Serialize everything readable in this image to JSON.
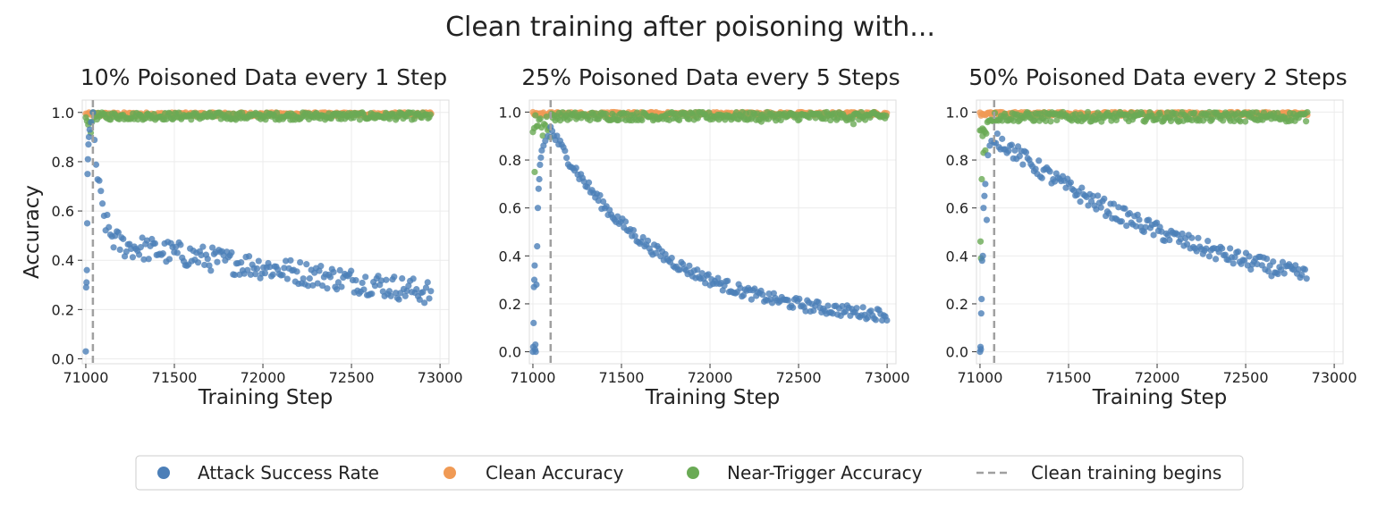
{
  "suptitle": "Clean training after poisoning with...",
  "colors": {
    "attack": "#4c7fb8",
    "clean": "#f09a55",
    "near": "#6aaa55",
    "dashed": "#a0a0a0",
    "grid": "#ececec",
    "axis": "#333333"
  },
  "legend": {
    "items": [
      {
        "label": "Attack Success Rate",
        "kind": "attack"
      },
      {
        "label": "Clean Accuracy",
        "kind": "clean"
      },
      {
        "label": "Near-Trigger Accuracy",
        "kind": "near"
      },
      {
        "label": "Clean training begins",
        "kind": "line"
      }
    ]
  },
  "chart_data": [
    {
      "type": "scatter",
      "title": "10% Poisoned Data every 1 Step",
      "xlabel": "Training Step",
      "ylabel": "Accuracy",
      "xlim": [
        70980,
        73050
      ],
      "ylim": [
        -0.02,
        1.05
      ],
      "xticks": [
        71000,
        71500,
        72000,
        72500,
        73000
      ],
      "yticks": [
        0.0,
        0.2,
        0.4,
        0.6,
        0.8,
        1.0
      ],
      "clean_training_begins": 71040,
      "x_end": 72950,
      "attack": {
        "start_points": [
          [
            71000,
            0.03
          ],
          [
            71002,
            0.29
          ],
          [
            71004,
            0.31
          ],
          [
            71006,
            0.36
          ],
          [
            71008,
            0.55
          ],
          [
            71010,
            0.75
          ],
          [
            71012,
            0.81
          ],
          [
            71015,
            0.87
          ],
          [
            71018,
            0.9
          ],
          [
            71022,
            0.93
          ],
          [
            71030,
            0.96
          ]
        ],
        "decay": {
          "start": 71040,
          "peak": 0.97,
          "plateau": 0.45,
          "tau": 45,
          "late_slope_per_1000": -0.11,
          "late_start": 71300,
          "noise": 0.05,
          "step": 9
        }
      },
      "clean": {
        "min": 0.985,
        "max": 1.0
      },
      "near": {
        "min": 0.97,
        "max": 1.0,
        "outliers": []
      }
    },
    {
      "type": "scatter",
      "title": "25% Poisoned Data every 5 Steps",
      "xlabel": "Training Step",
      "ylabel": "",
      "xlim": [
        70980,
        73050
      ],
      "ylim": [
        -0.05,
        1.05
      ],
      "xticks": [
        71000,
        71500,
        72000,
        72500,
        73000
      ],
      "yticks": [
        0.0,
        0.2,
        0.4,
        0.6,
        0.8,
        1.0
      ],
      "clean_training_begins": 71100,
      "x_end": 73000,
      "attack": {
        "start_points": [
          [
            71000,
            0.0
          ],
          [
            71002,
            0.02
          ],
          [
            71004,
            0.12
          ],
          [
            71006,
            0.27
          ],
          [
            71008,
            0.3
          ],
          [
            71010,
            0.36
          ],
          [
            71012,
            0.01
          ],
          [
            71014,
            0.03
          ],
          [
            71016,
            0.0
          ],
          [
            71020,
            0.28
          ],
          [
            71024,
            0.44
          ],
          [
            71028,
            0.6
          ],
          [
            71032,
            0.68
          ],
          [
            71036,
            0.72
          ],
          [
            71040,
            0.78
          ],
          [
            71045,
            0.81
          ],
          [
            71050,
            0.84
          ],
          [
            71060,
            0.86
          ],
          [
            71070,
            0.88
          ],
          [
            71085,
            0.9
          ]
        ],
        "decay": {
          "start": 71100,
          "peak": 0.93,
          "plateau": 0.12,
          "tau": 600,
          "late_slope_per_1000": 0,
          "late_start": 71300,
          "noise": 0.025,
          "step": 9
        }
      },
      "clean": {
        "min": 0.985,
        "max": 1.0
      },
      "near": {
        "min": 0.965,
        "max": 1.0,
        "outliers": [
          [
            71010,
            0.75
          ],
          [
            72290,
            0.96
          ],
          [
            72810,
            0.95
          ]
        ]
      }
    },
    {
      "type": "scatter",
      "title": "50% Poisoned Data every 2 Steps",
      "xlabel": "Training Step",
      "ylabel": "",
      "xlim": [
        70980,
        73050
      ],
      "ylim": [
        -0.05,
        1.05
      ],
      "xticks": [
        71000,
        71500,
        72000,
        72500,
        73000
      ],
      "yticks": [
        0.0,
        0.2,
        0.4,
        0.6,
        0.8,
        1.0
      ],
      "clean_training_begins": 71080,
      "x_end": 72850,
      "attack": {
        "start_points": [
          [
            71000,
            0.0
          ],
          [
            71003,
            0.02
          ],
          [
            71005,
            0.01
          ],
          [
            71007,
            0.16
          ],
          [
            71009,
            0.22
          ],
          [
            71012,
            0.38
          ],
          [
            71016,
            0.4
          ],
          [
            71020,
            0.6
          ],
          [
            71025,
            0.65
          ],
          [
            71030,
            0.7
          ],
          [
            71038,
            0.55
          ],
          [
            71045,
            0.82
          ],
          [
            71055,
            0.86
          ],
          [
            71065,
            0.88
          ]
        ],
        "decay": {
          "start": 71080,
          "peak": 0.9,
          "plateau": 0.1,
          "tau": 1350,
          "late_slope_per_1000": 0,
          "late_start": 71300,
          "noise": 0.035,
          "step": 9
        }
      },
      "clean": {
        "min": 0.985,
        "max": 1.0
      },
      "near": {
        "min": 0.96,
        "max": 1.0,
        "outliers": [
          [
            71003,
            0.46
          ],
          [
            71006,
            0.39
          ],
          [
            71010,
            0.72
          ],
          [
            71020,
            0.83
          ],
          [
            71030,
            0.84
          ],
          [
            71015,
            0.9
          ]
        ]
      }
    }
  ]
}
